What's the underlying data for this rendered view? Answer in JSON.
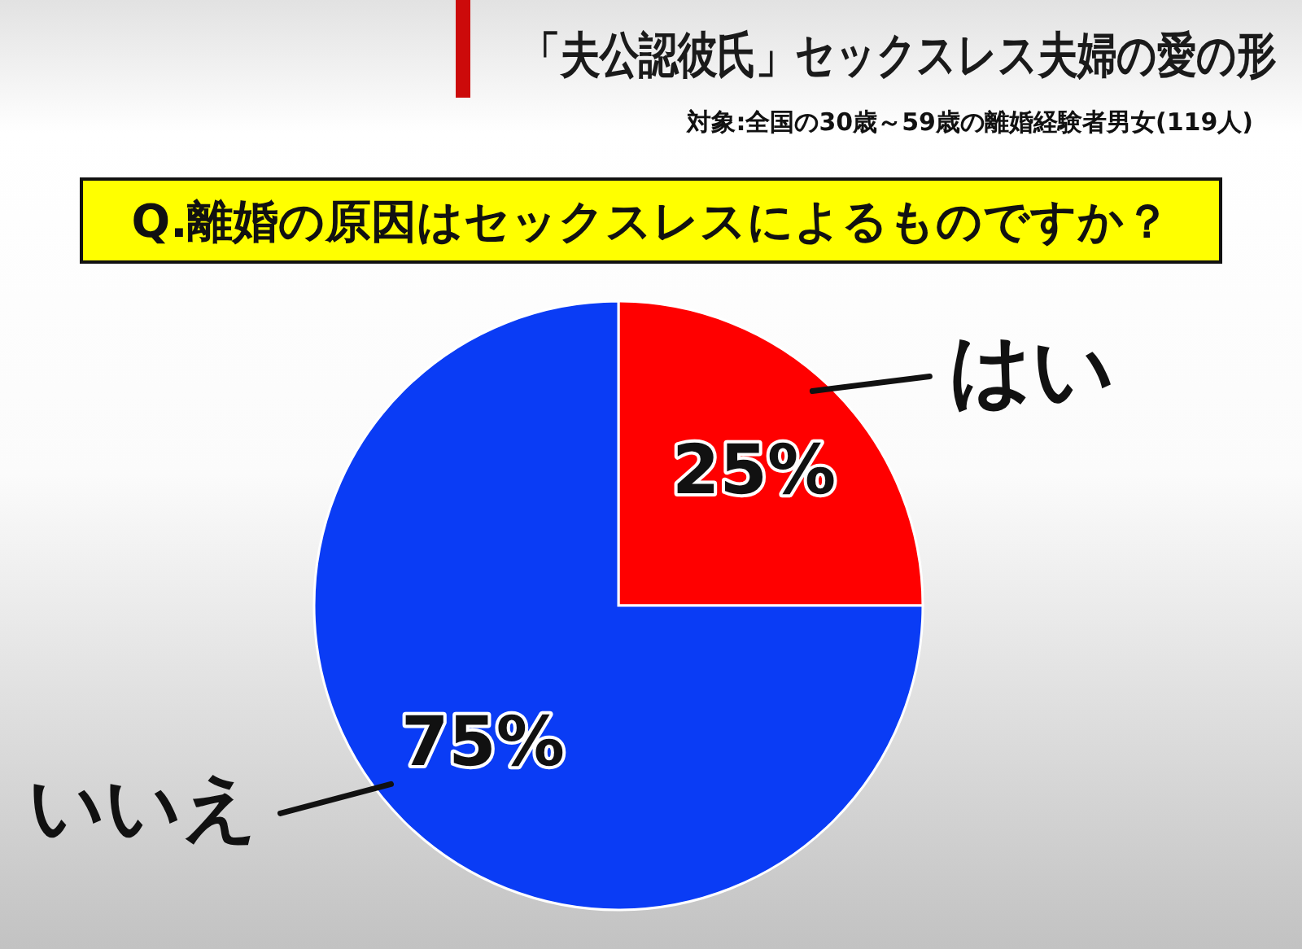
{
  "chart_data": {
    "type": "pie",
    "title": "「夫公認彼氏」セックスレス夫婦の愛の形",
    "subtitle": "Q.離婚の原因はセックスレスによるものですか？",
    "annotations": [
      "対象:全国の30歳～59歳の離婚経験者男女(119人)"
    ],
    "categories": [
      "はい",
      "いいえ"
    ],
    "values": [
      25,
      75
    ],
    "colors": [
      "#ff0000",
      "#0a3cf5"
    ],
    "value_labels": [
      "25%",
      "75%"
    ]
  }
}
